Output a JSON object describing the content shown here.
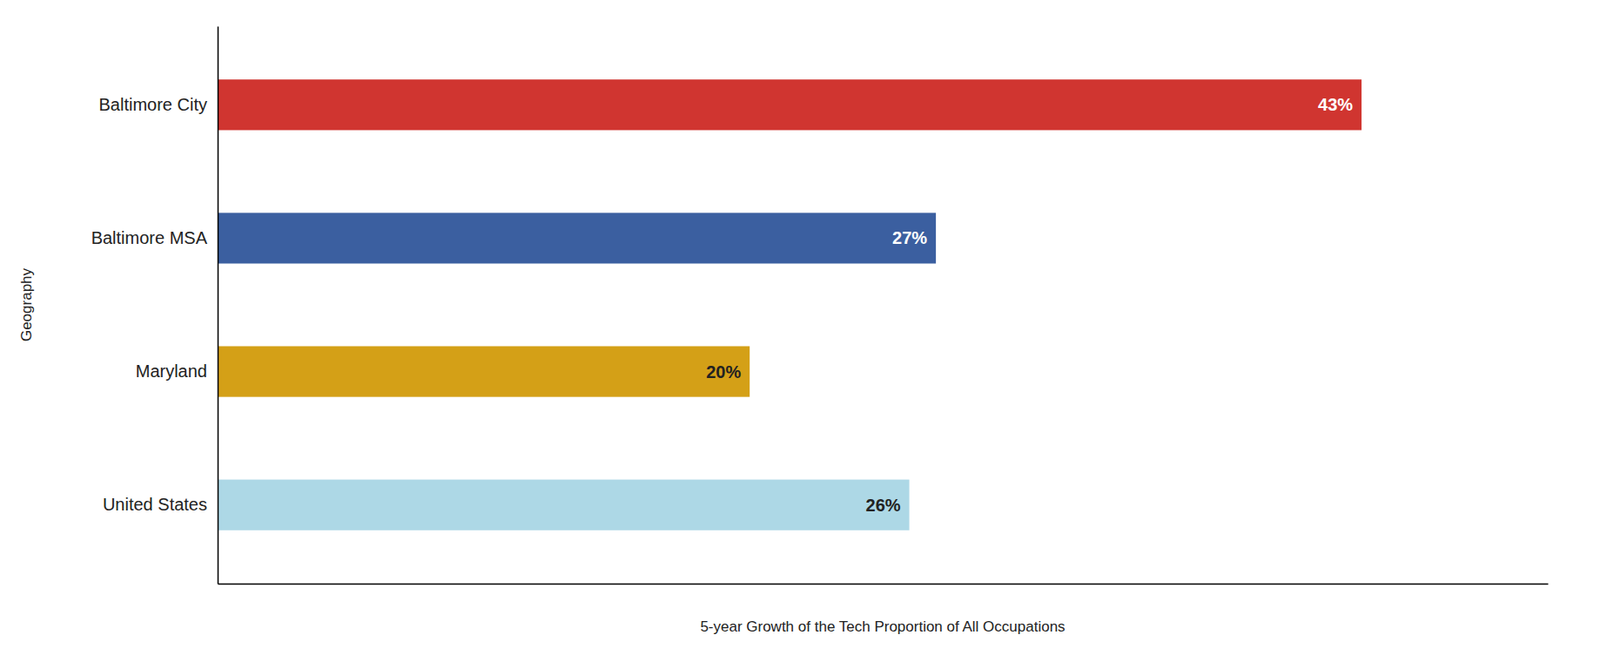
{
  "chart_data": {
    "type": "bar",
    "orientation": "horizontal",
    "categories": [
      "United States",
      "Maryland",
      "Baltimore MSA",
      "Baltimore City"
    ],
    "values": [
      26,
      20,
      27,
      43
    ],
    "value_labels": [
      "26%",
      "20%",
      "27%",
      "43%"
    ],
    "colors": [
      "#add8e6",
      "#d4a017",
      "#3b5fa0",
      "#d03530"
    ],
    "xlabel": "5-year Growth of the Tech Proportion of All Occupations",
    "ylabel": "Geography",
    "xlim": [
      0,
      50
    ],
    "xticks": [],
    "grid": false,
    "data_labels": true,
    "tick_labels": "y"
  }
}
